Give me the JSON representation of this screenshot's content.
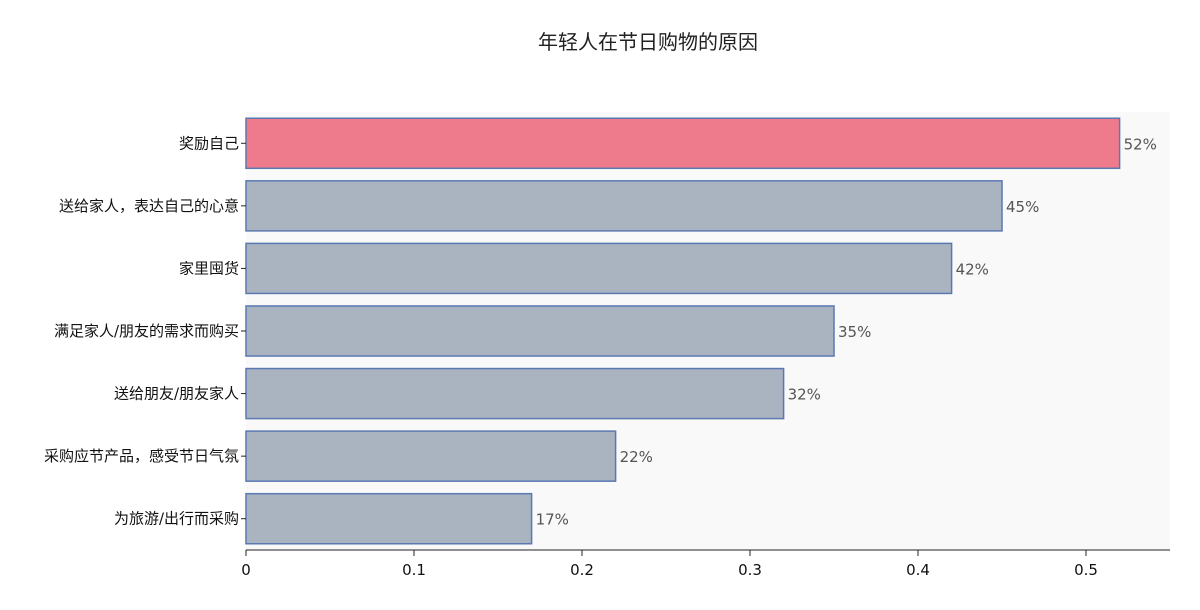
{
  "chart_data": {
    "type": "bar",
    "orientation": "horizontal",
    "title": "年轻人在节日购物的原因",
    "categories": [
      "奖励自己",
      "送给家人，表达自己的心意",
      "家里囤货",
      "满足家人/朋友的需求而购买",
      "送给朋友/朋友家人",
      "采购应节产品，感受节日气氛",
      "为旅游/出行而采购"
    ],
    "values": [
      0.52,
      0.45,
      0.42,
      0.35,
      0.32,
      0.22,
      0.17
    ],
    "data_labels": [
      "52%",
      "45%",
      "42%",
      "35%",
      "32%",
      "22%",
      "17%"
    ],
    "xlim": [
      0,
      0.55
    ],
    "xticks": [
      0,
      0.1,
      0.2,
      0.3,
      0.4,
      0.5
    ],
    "xtick_labels": [
      "0",
      "0.1",
      "0.2",
      "0.3",
      "0.4",
      "0.5"
    ],
    "grid": false,
    "highlight_index": 0,
    "colors": {
      "highlight_fill": "#ee7b8b",
      "bar_fill": "#aab4c0",
      "bar_stroke": "#5b78b0",
      "plot_background": "#f9f9f9"
    }
  }
}
